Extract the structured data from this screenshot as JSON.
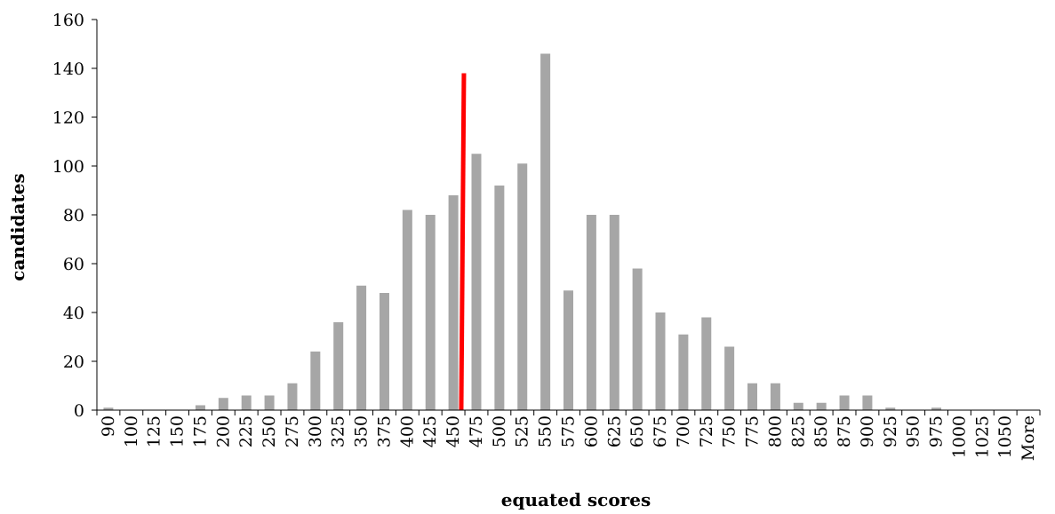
{
  "chart_data": {
    "type": "bar",
    "title": "",
    "xlabel": "equated scores",
    "ylabel": "candidates",
    "ylim": [
      0,
      160
    ],
    "yticks": [
      0,
      20,
      40,
      60,
      80,
      100,
      120,
      140,
      160
    ],
    "categories": [
      "90",
      "100",
      "125",
      "150",
      "175",
      "200",
      "225",
      "250",
      "275",
      "300",
      "325",
      "350",
      "375",
      "400",
      "425",
      "450",
      "475",
      "500",
      "525",
      "550",
      "575",
      "600",
      "625",
      "650",
      "675",
      "700",
      "725",
      "750",
      "775",
      "800",
      "825",
      "850",
      "875",
      "900",
      "925",
      "950",
      "975",
      "1000",
      "1025",
      "1050",
      "More"
    ],
    "values": [
      1,
      0,
      0,
      0,
      2,
      5,
      6,
      6,
      11,
      24,
      36,
      51,
      48,
      82,
      80,
      88,
      105,
      92,
      101,
      146,
      49,
      80,
      80,
      58,
      40,
      31,
      38,
      26,
      11,
      11,
      3,
      3,
      6,
      6,
      1,
      0,
      1,
      0,
      0,
      0,
      0
    ],
    "grid": false,
    "colors": {
      "bars": "#a6a6a6",
      "marker": "#ff0000"
    },
    "marker": {
      "x": 460,
      "value": 138
    }
  }
}
